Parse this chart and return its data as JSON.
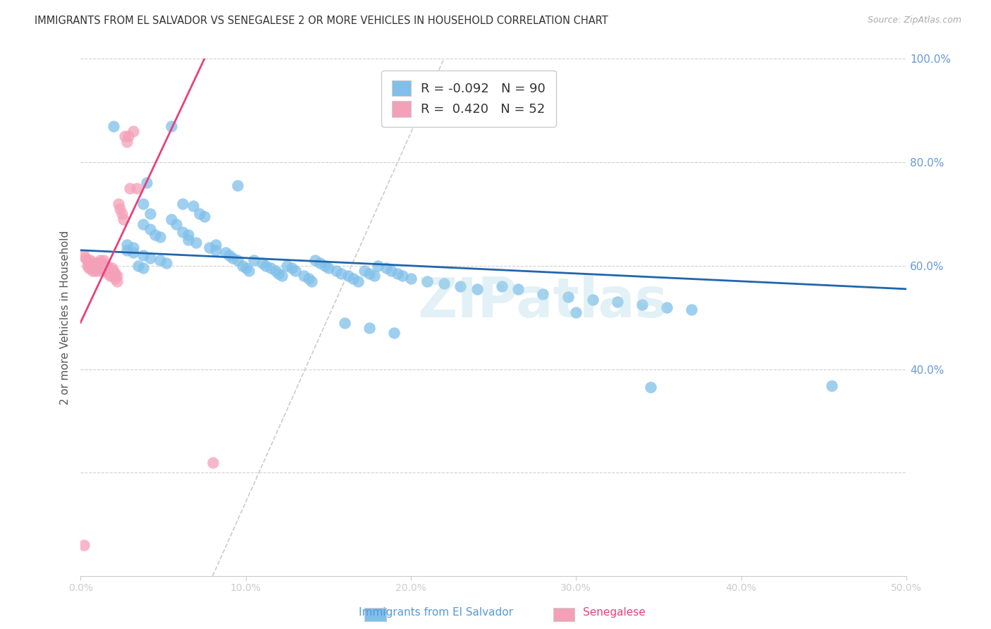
{
  "title": "IMMIGRANTS FROM EL SALVADOR VS SENEGALESE 2 OR MORE VEHICLES IN HOUSEHOLD CORRELATION CHART",
  "source": "Source: ZipAtlas.com",
  "ylabel": "2 or more Vehicles in Household",
  "legend_label1": "Immigrants from El Salvador",
  "legend_label2": "Senegalese",
  "R1": -0.092,
  "N1": 90,
  "R2": 0.42,
  "N2": 52,
  "xlim": [
    0.0,
    0.5
  ],
  "ylim": [
    0.0,
    1.0
  ],
  "xticks": [
    0.0,
    0.1,
    0.2,
    0.3,
    0.4,
    0.5
  ],
  "yticks": [
    0.0,
    0.2,
    0.4,
    0.6,
    0.8,
    1.0
  ],
  "xtick_labels": [
    "0.0%",
    "10.0%",
    "20.0%",
    "30.0%",
    "40.0%",
    "50.0%"
  ],
  "right_ytick_labels": [
    "",
    "",
    "40.0%",
    "60.0%",
    "80.0%",
    "100.0%"
  ],
  "color1": "#7fbfea",
  "color2": "#f4a0b8",
  "trendline_color1": "#2166ac",
  "trendline_color2": "#e8417a",
  "dashed_line_color": "#cccccc",
  "watermark": "ZIPatlas",
  "watermark_color": "#add8e6",
  "blue_scatter_x": [
    0.02,
    0.055,
    0.04,
    0.095,
    0.038,
    0.042,
    0.038,
    0.042,
    0.045,
    0.048,
    0.028,
    0.032,
    0.028,
    0.032,
    0.038,
    0.042,
    0.048,
    0.052,
    0.035,
    0.038,
    0.055,
    0.058,
    0.062,
    0.065,
    0.062,
    0.068,
    0.072,
    0.075,
    0.065,
    0.07,
    0.078,
    0.082,
    0.082,
    0.088,
    0.09,
    0.092,
    0.095,
    0.098,
    0.1,
    0.102,
    0.105,
    0.11,
    0.112,
    0.115,
    0.118,
    0.12,
    0.122,
    0.125,
    0.128,
    0.13,
    0.135,
    0.138,
    0.14,
    0.142,
    0.145,
    0.148,
    0.15,
    0.155,
    0.158,
    0.162,
    0.165,
    0.168,
    0.172,
    0.175,
    0.178,
    0.18,
    0.185,
    0.188,
    0.192,
    0.195,
    0.2,
    0.21,
    0.22,
    0.23,
    0.24,
    0.255,
    0.265,
    0.28,
    0.295,
    0.31,
    0.325,
    0.34,
    0.355,
    0.37,
    0.3,
    0.16,
    0.175,
    0.19,
    0.345,
    0.455
  ],
  "blue_scatter_y": [
    0.87,
    0.87,
    0.76,
    0.755,
    0.72,
    0.7,
    0.68,
    0.67,
    0.66,
    0.655,
    0.64,
    0.635,
    0.63,
    0.625,
    0.62,
    0.615,
    0.61,
    0.605,
    0.6,
    0.595,
    0.69,
    0.68,
    0.665,
    0.66,
    0.72,
    0.715,
    0.7,
    0.695,
    0.65,
    0.645,
    0.635,
    0.63,
    0.64,
    0.625,
    0.62,
    0.615,
    0.61,
    0.6,
    0.595,
    0.59,
    0.61,
    0.605,
    0.6,
    0.595,
    0.59,
    0.585,
    0.58,
    0.6,
    0.595,
    0.59,
    0.58,
    0.575,
    0.57,
    0.61,
    0.605,
    0.6,
    0.595,
    0.59,
    0.585,
    0.58,
    0.575,
    0.57,
    0.59,
    0.585,
    0.58,
    0.6,
    0.595,
    0.59,
    0.585,
    0.58,
    0.575,
    0.57,
    0.565,
    0.56,
    0.555,
    0.56,
    0.555,
    0.545,
    0.54,
    0.535,
    0.53,
    0.525,
    0.52,
    0.515,
    0.51,
    0.49,
    0.48,
    0.47,
    0.365,
    0.368
  ],
  "pink_scatter_x": [
    0.002,
    0.003,
    0.004,
    0.004,
    0.005,
    0.005,
    0.006,
    0.006,
    0.007,
    0.007,
    0.008,
    0.008,
    0.009,
    0.009,
    0.01,
    0.01,
    0.011,
    0.011,
    0.012,
    0.012,
    0.013,
    0.013,
    0.014,
    0.014,
    0.015,
    0.015,
    0.016,
    0.016,
    0.017,
    0.017,
    0.018,
    0.018,
    0.019,
    0.019,
    0.02,
    0.02,
    0.021,
    0.021,
    0.022,
    0.022,
    0.023,
    0.024,
    0.025,
    0.026,
    0.027,
    0.028,
    0.029,
    0.03,
    0.032,
    0.034,
    0.002,
    0.08
  ],
  "pink_scatter_y": [
    0.62,
    0.615,
    0.61,
    0.6,
    0.605,
    0.595,
    0.61,
    0.6,
    0.595,
    0.59,
    0.605,
    0.595,
    0.6,
    0.59,
    0.605,
    0.595,
    0.6,
    0.59,
    0.61,
    0.6,
    0.605,
    0.595,
    0.61,
    0.6,
    0.595,
    0.59,
    0.6,
    0.59,
    0.595,
    0.585,
    0.59,
    0.58,
    0.595,
    0.585,
    0.59,
    0.58,
    0.585,
    0.575,
    0.58,
    0.57,
    0.72,
    0.71,
    0.7,
    0.69,
    0.85,
    0.84,
    0.85,
    0.75,
    0.86,
    0.75,
    0.06,
    0.22
  ],
  "blue_trend_x": [
    0.0,
    0.5
  ],
  "blue_trend_y": [
    0.63,
    0.555
  ],
  "pink_trend_x": [
    0.0,
    0.075
  ],
  "pink_trend_y": [
    0.49,
    1.0
  ]
}
